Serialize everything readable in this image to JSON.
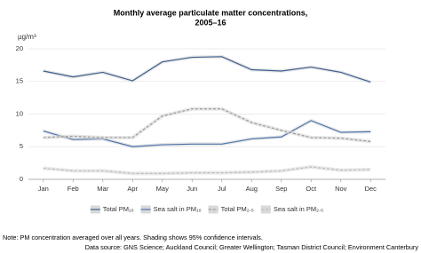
{
  "chart_data": {
    "type": "line",
    "title": [
      "Monthly average particulate matter concentrations,",
      "2005–16"
    ],
    "y_label": "µg/m³",
    "categories": [
      "Jan",
      "Feb",
      "Mar",
      "Apr",
      "May",
      "Jun",
      "Jul",
      "Aug",
      "Sep",
      "Oct",
      "Nov",
      "Dec"
    ],
    "series": [
      {
        "name": "Total PM₁₀",
        "color": "#3e5f8f",
        "dash": false,
        "values": [
          16.6,
          15.7,
          16.4,
          15.1,
          18.0,
          18.7,
          18.8,
          16.8,
          16.6,
          17.2,
          16.4,
          14.9
        ]
      },
      {
        "name": "Sea salt in PM₁₀",
        "color": "#4a73ab",
        "dash": false,
        "values": [
          7.4,
          6.1,
          6.2,
          5.0,
          5.3,
          5.4,
          5.4,
          6.2,
          6.5,
          9.0,
          7.2,
          7.3
        ]
      },
      {
        "name": "Total PM₂.₅",
        "color": "#9a9a9a",
        "dash": true,
        "values": [
          6.4,
          6.6,
          6.4,
          6.4,
          9.7,
          10.8,
          10.8,
          8.7,
          7.5,
          6.4,
          6.3,
          5.8
        ]
      },
      {
        "name": "Sea salt in PM₂.₅",
        "color": "#bdbdbd",
        "dash": true,
        "values": [
          1.7,
          1.3,
          1.3,
          0.9,
          0.9,
          1.0,
          1.0,
          1.1,
          1.3,
          1.9,
          1.4,
          1.5
        ]
      }
    ],
    "ylim": [
      0,
      20
    ],
    "yticks": [
      0,
      5,
      10,
      15,
      20
    ],
    "grid": true,
    "legend": "bottom",
    "notes": [
      "Note: PM concentration averaged over all years. Shading shows 95% confidence intervals.",
      "Data source: GNS Science; Auckland Council; Greater Wellington; Tasman District Council; Environment Canterbury"
    ]
  }
}
